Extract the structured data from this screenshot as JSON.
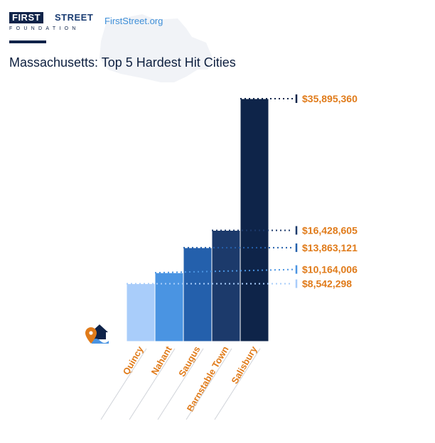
{
  "header": {
    "logo_first": "FIRST",
    "logo_street": "STREET",
    "logo_foundation": "FOUNDATION",
    "site_link": "FirstStreet.org"
  },
  "colors": {
    "brand_navy": "#0f2349",
    "link_blue": "#3f8fd8",
    "label_orange": "#e07b1a",
    "bars": [
      "#a9cdfa",
      "#4a94e2",
      "#2460ac",
      "#1c3a6b",
      "#0e2449"
    ],
    "markers": [
      "#a9cdfa",
      "#4a94e2",
      "#2460ac",
      "#1c3a6b",
      "#0e2449"
    ]
  },
  "chart_data": {
    "type": "bar",
    "title": "Massachusetts: Top 5 Hardest Hit Cities",
    "categories": [
      "Quincy",
      "Nahant",
      "Saugus",
      "Barnstable Town",
      "Salisbury"
    ],
    "values": [
      8542298,
      10164006,
      13863121,
      16428605,
      35895360
    ],
    "value_labels": [
      "$8,542,298",
      "$10,164,006",
      "$13,863,121",
      "$16,428,605",
      "$35,895,360"
    ],
    "ylim": [
      0,
      35895360
    ],
    "grid": false,
    "legend": "none"
  },
  "icons": {
    "house_pin": "house-flood-pin-icon"
  }
}
